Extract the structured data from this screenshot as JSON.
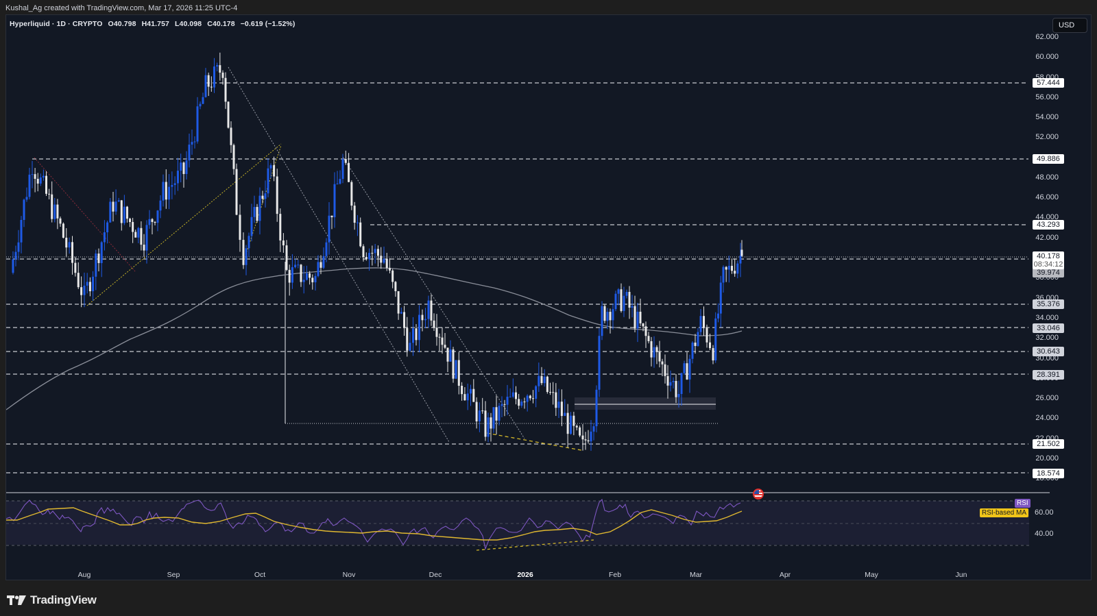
{
  "credit": "Kushal_Ag created with TradingView.com, Mar 17, 2026 11:25 UTC-4",
  "legend": {
    "symbol": "Hyperliquid",
    "interval": "1D",
    "exchange": "CRYPTO",
    "open": "O40.798",
    "high": "H41.757",
    "low": "L40.098",
    "close": "C40.178",
    "change": "−0.619 (−1.52%)",
    "full": "Hyperliquid · 1D · CRYPTO"
  },
  "currency_button": "USD",
  "price_axis": {
    "ticks": [
      "62.000",
      "60.000",
      "58.000",
      "56.000",
      "54.000",
      "52.000",
      "48.000",
      "46.000",
      "44.000",
      "42.000",
      "38.000",
      "36.000",
      "34.000",
      "32.000",
      "30.000",
      "28.000",
      "26.000",
      "24.000",
      "22.000",
      "20.000",
      "18.000"
    ],
    "levels": [
      "57.444",
      "49.886",
      "43.293",
      "39.974",
      "35.376",
      "33.046",
      "30.643",
      "28.391",
      "21.502",
      "18.574"
    ],
    "current_price": "40.178",
    "countdown": "08:34:12"
  },
  "rsi_panel": {
    "rsi_label": "RSI",
    "ma_label": "RSI-based MA",
    "ticks": [
      "60.00",
      "40.00"
    ],
    "rsi_color": "#7e57c2",
    "ma_color": "#f0c419"
  },
  "time_axis": [
    "Aug",
    "Sep",
    "Oct",
    "Nov",
    "Dec",
    "2026",
    "Feb",
    "Mar",
    "Apr",
    "May",
    "Jun"
  ],
  "brand": "TradingView",
  "colors": {
    "up_candle": "#1e5ae6",
    "down_candle": "#e8e8e8",
    "background": "#121824",
    "ma_line": "#8a8e99"
  },
  "chart_data": {
    "type": "candlestick",
    "title": "Hyperliquid · 1D · CRYPTO",
    "symbol": "Hyperliquid",
    "interval": "1D",
    "last_bar": {
      "open": 40.798,
      "high": 41.757,
      "low": 40.098,
      "close": 40.178,
      "change": -0.619,
      "change_pct": -1.52
    },
    "x_ticks": [
      "Aug",
      "Sep",
      "Oct",
      "Nov",
      "Dec",
      "2026",
      "Feb",
      "Mar",
      "Apr",
      "May",
      "Jun"
    ],
    "y_ticks": [
      18,
      20,
      22,
      24,
      26,
      28,
      30,
      32,
      34,
      36,
      38,
      42,
      44,
      46,
      48,
      52,
      54,
      56,
      58,
      60,
      62
    ],
    "ylim": [
      17.5,
      62.5
    ],
    "horizontal_levels": [
      57.444,
      49.886,
      43.293,
      39.974,
      35.376,
      33.046,
      30.643,
      28.391,
      21.502,
      18.574
    ],
    "approx_price_path": [
      {
        "date": "Jul 10",
        "close": 38.5
      },
      {
        "date": "Jul 14",
        "close": 49.5
      },
      {
        "date": "Jul 25",
        "close": 43.0
      },
      {
        "date": "Aug 1",
        "close": 36.0
      },
      {
        "date": "Aug 10",
        "close": 45.5
      },
      {
        "date": "Aug 20",
        "close": 42.0
      },
      {
        "date": "Aug 27",
        "close": 46.5
      },
      {
        "date": "Sep 5",
        "close": 48.5
      },
      {
        "date": "Sep 12",
        "close": 57.0
      },
      {
        "date": "Sep 18",
        "close": 59.0
      },
      {
        "date": "Sep 25",
        "close": 45.0
      },
      {
        "date": "Sep 28",
        "close": 40.5
      },
      {
        "date": "Oct 5",
        "close": 49.0
      },
      {
        "date": "Oct 10",
        "close": 38.5
      },
      {
        "date": "Oct 20",
        "close": 38.0
      },
      {
        "date": "Oct 27",
        "close": 49.5
      },
      {
        "date": "Nov 5",
        "close": 41.0
      },
      {
        "date": "Nov 15",
        "close": 40.0
      },
      {
        "date": "Nov 22",
        "close": 31.0
      },
      {
        "date": "Nov 30",
        "close": 35.5
      },
      {
        "date": "Dec 10",
        "close": 28.5
      },
      {
        "date": "Dec 18",
        "close": 23.0
      },
      {
        "date": "Dec 28",
        "close": 25.5
      },
      {
        "date": "Jan 6",
        "close": 27.5
      },
      {
        "date": "Jan 15",
        "close": 25.0
      },
      {
        "date": "Jan 20",
        "close": 21.0
      },
      {
        "date": "Jan 25",
        "close": 24.5
      },
      {
        "date": "Jan 28",
        "close": 34.5
      },
      {
        "date": "Feb 5",
        "close": 36.0
      },
      {
        "date": "Feb 15",
        "close": 31.0
      },
      {
        "date": "Feb 25",
        "close": 26.5
      },
      {
        "date": "Mar 5",
        "close": 33.5
      },
      {
        "date": "Mar 10",
        "close": 31.0
      },
      {
        "date": "Mar 14",
        "close": 38.0
      },
      {
        "date": "Mar 17",
        "close": 40.178
      }
    ],
    "moving_average": {
      "label": "MA (gray)",
      "approx": [
        {
          "date": "Jul 10",
          "value": 25.5
        },
        {
          "date": "Aug 15",
          "value": 30.5
        },
        {
          "date": "Sep 15",
          "value": 35.5
        },
        {
          "date": "Oct 10",
          "value": 38.5
        },
        {
          "date": "Nov 15",
          "value": 39.0
        },
        {
          "date": "Dec 15",
          "value": 37.0
        },
        {
          "date": "Jan 20",
          "value": 34.0
        },
        {
          "date": "Feb 10",
          "value": 33.0
        },
        {
          "date": "Mar 5",
          "value": 32.0
        },
        {
          "date": "Mar 17",
          "value": 32.8
        }
      ]
    },
    "rsi": {
      "ylim": [
        30,
        70
      ],
      "ticks": [
        40,
        60
      ],
      "bands": [
        30,
        50,
        70
      ],
      "series": [
        {
          "name": "RSI",
          "color": "#7e57c2"
        },
        {
          "name": "RSI-based MA",
          "color": "#f0c419"
        }
      ]
    },
    "annotations": [
      "descending trendlines",
      "ascending trendlines (yellow dotted)",
      "bullish RSI divergence (yellow dashed)",
      "supply/demand box ~25.0-26.0",
      "US economic event flag"
    ]
  }
}
